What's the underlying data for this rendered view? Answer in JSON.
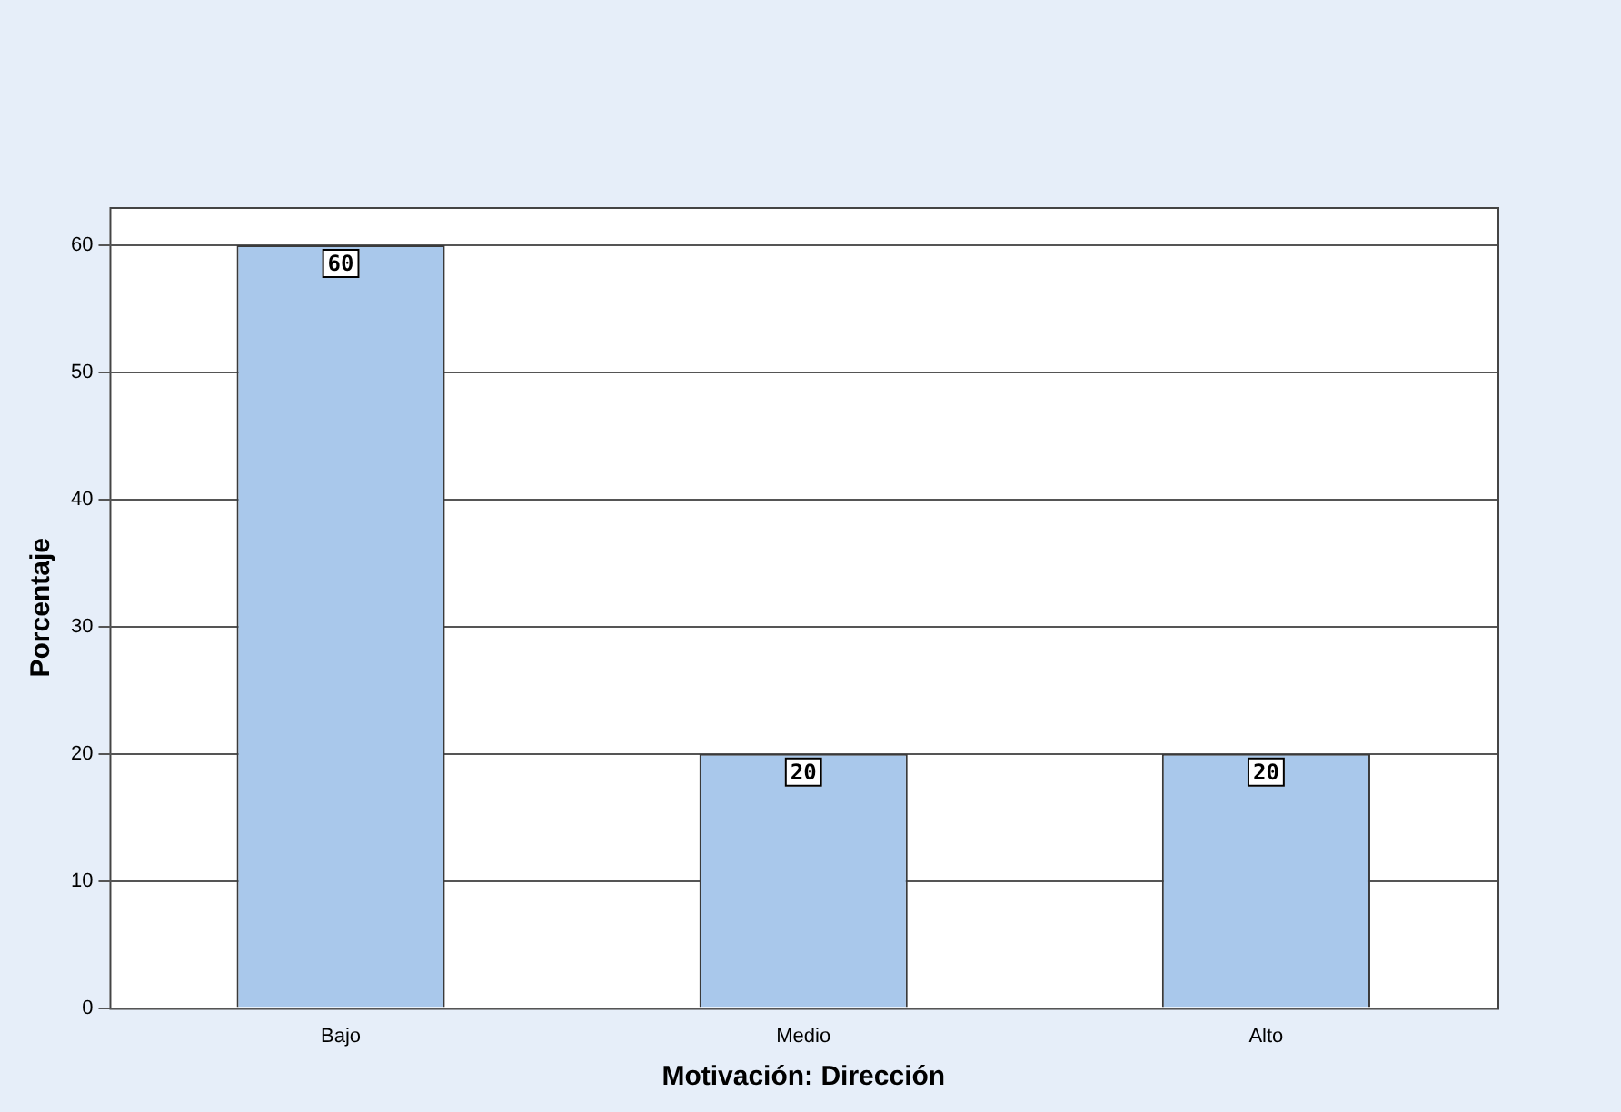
{
  "chart_data": {
    "type": "bar",
    "xlabel": "Motivación: Dirección",
    "ylabel": "Porcentaje",
    "categories": [
      "Bajo",
      "Medio",
      "Alto"
    ],
    "values": [
      60,
      20,
      20
    ],
    "color": "#a9c8eb",
    "ylim": [
      0,
      63
    ],
    "yticks": [
      0,
      10,
      20,
      30,
      40,
      50,
      60
    ],
    "grid": "y",
    "data_labels": true,
    "legend": false
  }
}
